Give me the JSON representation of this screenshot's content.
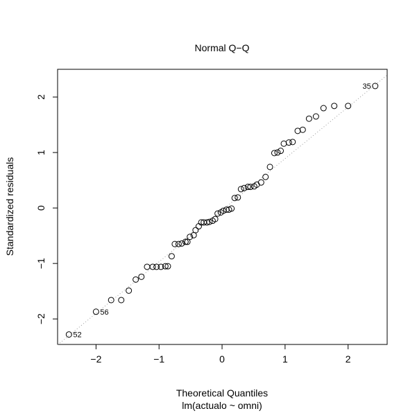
{
  "chart_data": {
    "type": "scatter",
    "title": "Normal Q−Q",
    "xlabel": "Theoretical Quantiles",
    "ylabel": "Standardized residuals",
    "subtitle": "lm(actualo ~ omni)",
    "xlim": [
      -2.61,
      2.62
    ],
    "ylim": [
      -2.46,
      2.5
    ],
    "xticks": [
      -2,
      -1,
      0,
      1,
      2
    ],
    "xtick_labels": [
      "−2",
      "−1",
      "0",
      "1",
      "2"
    ],
    "yticks": [
      -2,
      -1,
      0,
      1,
      2
    ],
    "ytick_labels": [
      "−2",
      "−1",
      "0",
      "1",
      "2"
    ],
    "grid": false,
    "reference_line": {
      "intercept": -0.04,
      "slope": 0.93,
      "style": "dotted"
    },
    "points": [
      [
        -2.43,
        -2.28
      ],
      [
        -2.0,
        -1.87
      ],
      [
        -1.76,
        -1.66
      ],
      [
        -1.6,
        -1.66
      ],
      [
        -1.48,
        -1.49
      ],
      [
        -1.37,
        -1.29
      ],
      [
        -1.28,
        -1.24
      ],
      [
        -1.19,
        -1.06
      ],
      [
        -1.1,
        -1.06
      ],
      [
        -1.04,
        -1.06
      ],
      [
        -0.97,
        -1.06
      ],
      [
        -0.9,
        -1.05
      ],
      [
        -0.86,
        -1.05
      ],
      [
        -0.8,
        -0.87
      ],
      [
        -0.75,
        -0.65
      ],
      [
        -0.69,
        -0.65
      ],
      [
        -0.64,
        -0.64
      ],
      [
        -0.58,
        -0.61
      ],
      [
        -0.55,
        -0.61
      ],
      [
        -0.51,
        -0.52
      ],
      [
        -0.45,
        -0.49
      ],
      [
        -0.42,
        -0.4
      ],
      [
        -0.37,
        -0.33
      ],
      [
        -0.33,
        -0.26
      ],
      [
        -0.29,
        -0.26
      ],
      [
        -0.24,
        -0.26
      ],
      [
        -0.2,
        -0.25
      ],
      [
        -0.15,
        -0.23
      ],
      [
        -0.11,
        -0.2
      ],
      [
        -0.07,
        -0.1
      ],
      [
        -0.02,
        -0.08
      ],
      [
        0.02,
        -0.05
      ],
      [
        0.07,
        -0.03
      ],
      [
        0.11,
        -0.03
      ],
      [
        0.15,
        -0.01
      ],
      [
        0.2,
        0.18
      ],
      [
        0.25,
        0.19
      ],
      [
        0.3,
        0.34
      ],
      [
        0.35,
        0.36
      ],
      [
        0.41,
        0.38
      ],
      [
        0.45,
        0.38
      ],
      [
        0.51,
        0.39
      ],
      [
        0.55,
        0.42
      ],
      [
        0.62,
        0.46
      ],
      [
        0.69,
        0.56
      ],
      [
        0.76,
        0.74
      ],
      [
        0.83,
        0.99
      ],
      [
        0.88,
        1.0
      ],
      [
        0.93,
        1.03
      ],
      [
        0.98,
        1.16
      ],
      [
        1.06,
        1.18
      ],
      [
        1.12,
        1.19
      ],
      [
        1.2,
        1.39
      ],
      [
        1.28,
        1.41
      ],
      [
        1.38,
        1.61
      ],
      [
        1.49,
        1.65
      ],
      [
        1.61,
        1.8
      ],
      [
        1.78,
        1.84
      ],
      [
        2.0,
        1.84
      ],
      [
        2.43,
        2.2
      ]
    ],
    "point_labels": [
      {
        "index": 0,
        "text": "52",
        "side": "right"
      },
      {
        "index": 1,
        "text": "56",
        "side": "right"
      },
      {
        "index": 59,
        "text": "35",
        "side": "left"
      }
    ]
  }
}
